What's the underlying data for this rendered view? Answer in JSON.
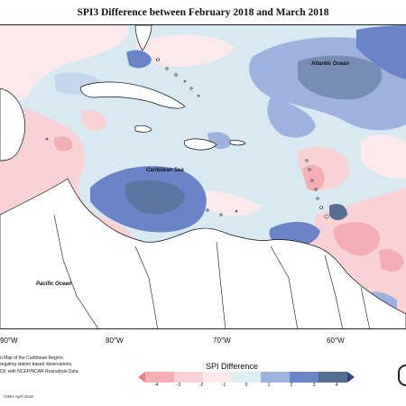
{
  "title": "SPI3 Difference between February 2018 and March 2018",
  "map": {
    "labels": {
      "atlantic": "Atlantic Ocean",
      "caribbean": "Caribbean Sea",
      "pacific": "Pacific Ocean"
    },
    "lon_ticks": [
      "90°W",
      "80°W",
      "70°W",
      "60°W"
    ]
  },
  "caption": {
    "line1": "n Map of the Caribbean Region.",
    "line2": "regating station based observations,",
    "line3": "DF, with NCEP/NCAR Reanalysis Data."
  },
  "credit": "CIMH April 2018",
  "legend": {
    "title": "SPI Difference",
    "tick_labels": [
      "-4",
      "-3",
      "-2",
      "-1",
      "0",
      "1",
      "2",
      "3",
      "4"
    ],
    "colors": [
      "#ef7f86",
      "#f4aeb5",
      "#f9d2d6",
      "#fbe9ec",
      "#ddeef4",
      "#9fb2de",
      "#6b84c8",
      "#566f90",
      "#3c3f8a"
    ]
  }
}
